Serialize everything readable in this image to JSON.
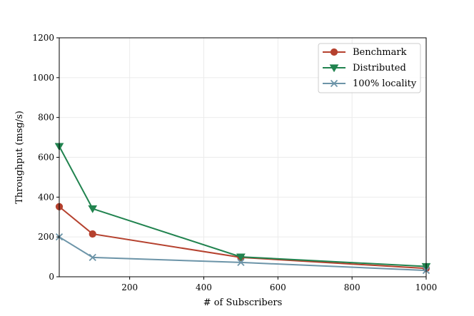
{
  "chart_data": {
    "type": "line",
    "title": "",
    "xlabel": "# of Subscribers",
    "ylabel": "Throughput (msg/s)",
    "xlim": [
      10,
      1000
    ],
    "ylim": [
      0,
      1200
    ],
    "xticks": [
      200,
      400,
      600,
      800,
      1000
    ],
    "yticks": [
      0,
      200,
      400,
      600,
      800,
      1000,
      1200
    ],
    "grid": true,
    "legend_position": "top-right",
    "series": [
      {
        "name": "Benchmark",
        "marker": "circle",
        "color": "#b5412e",
        "points": [
          [
            10,
            352
          ],
          [
            100,
            215
          ],
          [
            500,
            97
          ],
          [
            1000,
            42
          ]
        ]
      },
      {
        "name": "Distributed",
        "marker": "triangle-down",
        "color": "#21834f",
        "points": [
          [
            10,
            655
          ],
          [
            100,
            342
          ],
          [
            500,
            100
          ],
          [
            1000,
            52
          ]
        ]
      },
      {
        "name": "100% locality",
        "marker": "x",
        "color": "#6c94a8",
        "points": [
          [
            10,
            200
          ],
          [
            100,
            97
          ],
          [
            500,
            72
          ],
          [
            1000,
            32
          ]
        ]
      }
    ]
  }
}
